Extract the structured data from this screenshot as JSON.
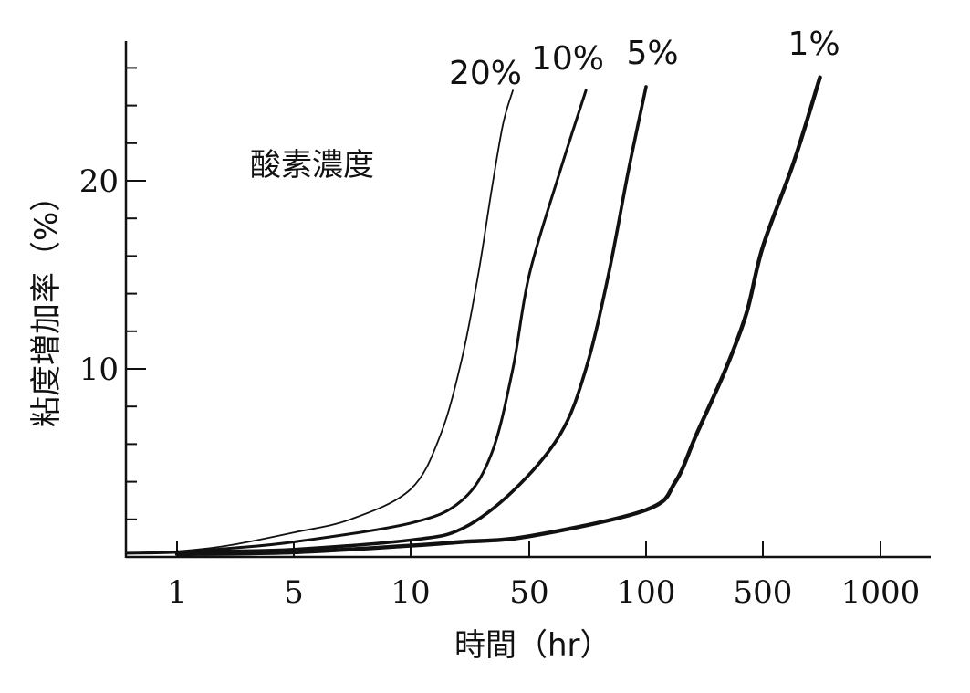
{
  "chart_data": {
    "type": "line",
    "title": "",
    "xlabel": "時間（hr）",
    "ylabel": "粘度増加率（%）",
    "legend_title": "酸素濃度",
    "x_scale": "log (1-2-5 spacing)",
    "x_ticks": [
      {
        "label": "1",
        "value": 1
      },
      {
        "label": "5",
        "value": 5
      },
      {
        "label": "10",
        "value": 10
      },
      {
        "label": "50",
        "value": 50
      },
      {
        "label": "100",
        "value": 100
      },
      {
        "label": "500",
        "value": 500
      },
      {
        "label": "1000",
        "value": 1000
      }
    ],
    "y_ticks": [
      {
        "label": "10",
        "value": 10
      },
      {
        "label": "20",
        "value": 20
      }
    ],
    "ylim": [
      0,
      26
    ],
    "grid": false,
    "series": [
      {
        "name": "20%",
        "x": [
          0.5,
          1,
          2,
          5,
          7,
          10,
          15,
          20,
          25,
          30,
          35,
          40
        ],
        "y": [
          0.2,
          0.3,
          0.6,
          1.3,
          2.0,
          3.6,
          6.5,
          10.5,
          15.0,
          19.5,
          23.0,
          24.8
        ]
      },
      {
        "name": "10%",
        "x": [
          0.5,
          1,
          2,
          5,
          10,
          20,
          30,
          40,
          50,
          60,
          70
        ],
        "y": [
          0.2,
          0.25,
          0.45,
          0.8,
          1.8,
          3.0,
          5.5,
          10.0,
          15.0,
          20.5,
          24.8
        ]
      },
      {
        "name": "5%",
        "x": [
          1,
          2,
          5,
          10,
          20,
          40,
          60,
          70,
          80,
          90,
          100
        ],
        "y": [
          0.2,
          0.3,
          0.4,
          0.9,
          1.5,
          3.5,
          6.5,
          10.0,
          15.0,
          20.5,
          25.0
        ]
      },
      {
        "name": "1%",
        "x": [
          1,
          5,
          10,
          20,
          50,
          100,
          150,
          200,
          300,
          400,
          500,
          600,
          700
        ],
        "y": [
          0.15,
          0.25,
          0.6,
          0.8,
          1.1,
          2.5,
          4.0,
          6.5,
          10.0,
          13.0,
          16.5,
          21.0,
          25.5
        ]
      }
    ]
  }
}
